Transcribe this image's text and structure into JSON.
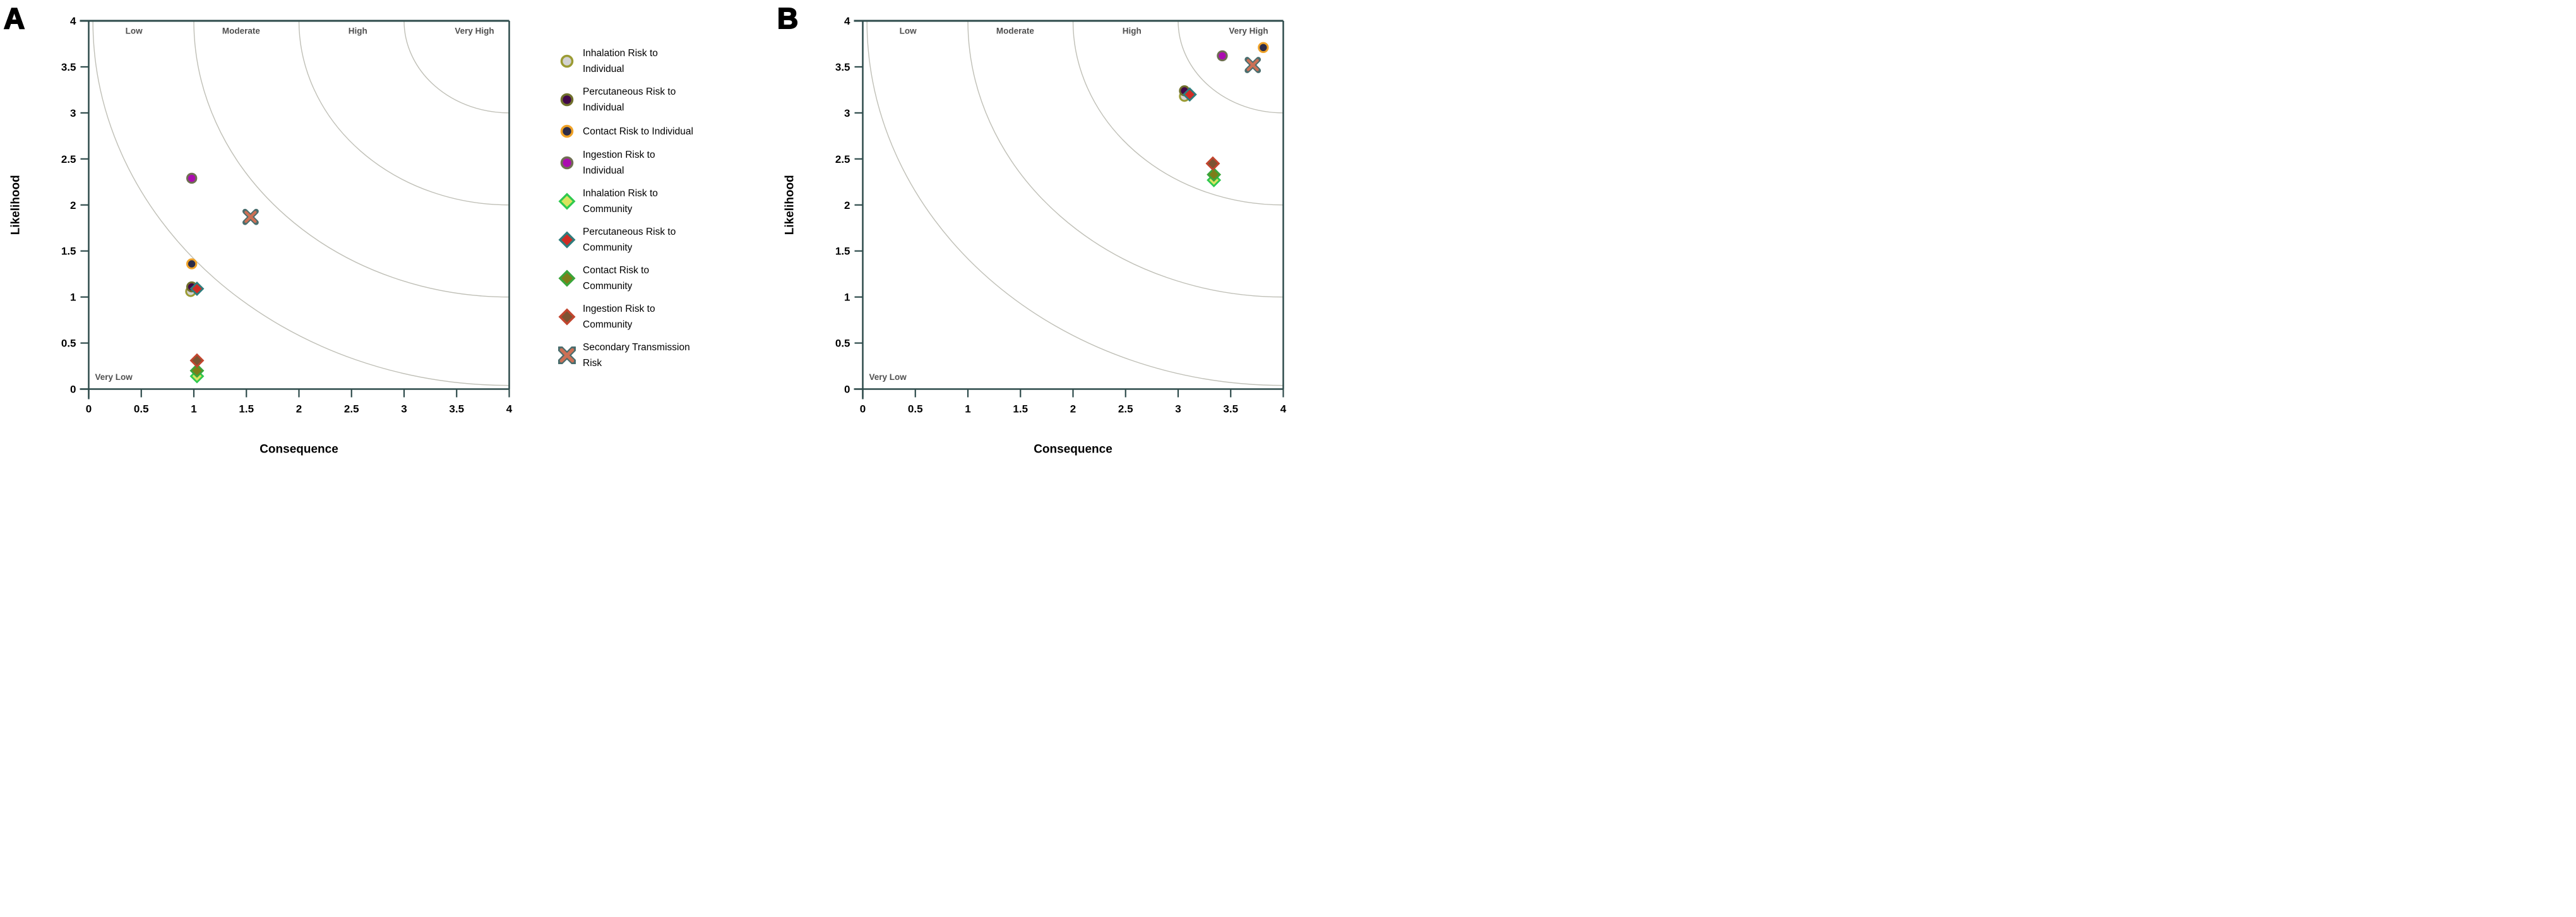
{
  "figure": {
    "panel_labels": [
      "A",
      "B"
    ],
    "background": "#ffffff",
    "axis_color": "#2e4b4b",
    "contour_color": "#bfbfb6",
    "zone_text_color": "#4f4f4f"
  },
  "legend": {
    "items": [
      {
        "label": "Inhalation Risk to\nIndividual",
        "marker": "circle",
        "fill": "#d2d2d2",
        "stroke": "#9b9b33"
      },
      {
        "label": "Percutaneous Risk to\nIndividual",
        "marker": "circle",
        "fill": "#410849",
        "stroke": "#70702c"
      },
      {
        "label": "Contact Risk to Individual",
        "marker": "circle",
        "fill": "#2c2c49",
        "stroke": "#efa228"
      },
      {
        "label": "Ingestion Risk to\nIndividual",
        "marker": "circle",
        "fill": "#ab0cb0",
        "stroke": "#6f6f52"
      },
      {
        "label": "Inhalation Risk to\nCommunity",
        "marker": "diamond",
        "fill": "#d9e45f",
        "stroke": "#2fc94f"
      },
      {
        "label": "Percutaneous Risk to\nCommunity",
        "marker": "diamond",
        "fill": "#d02c24",
        "stroke": "#2e7d7d"
      },
      {
        "label": "Contact Risk to\nCommunity",
        "marker": "diamond",
        "fill": "#7d7d19",
        "stroke": "#3aa53a"
      },
      {
        "label": "Ingestion Risk to\nCommunity",
        "marker": "diamond",
        "fill": "#7d5433",
        "stroke": "#c2452e"
      },
      {
        "label": "Secondary Transmission\nRisk",
        "marker": "x",
        "fill": "#cc7055",
        "stroke": "#4a6d6d"
      }
    ]
  },
  "chart_data": [
    {
      "panel": "A",
      "type": "scatter",
      "xlabel": "Consequence",
      "ylabel": "Likelihood",
      "xlim": [
        0,
        4
      ],
      "ylim": [
        0,
        4
      ],
      "xticks": [
        "0",
        "0.5",
        "1",
        "1.5",
        "2",
        "2.5",
        "3",
        "3.5",
        "4"
      ],
      "yticks": [
        "0",
        "0.5",
        "1",
        "1.5",
        "2",
        "2.5",
        "3",
        "3.5",
        "4"
      ],
      "grid": false,
      "contours": {
        "center": [
          4,
          4
        ],
        "radii": [
          1.0,
          2.0,
          3.0,
          3.96
        ]
      },
      "zones": [
        {
          "label": "Low",
          "x": 0.43,
          "y": 3.86,
          "align": "middle"
        },
        {
          "label": "Moderate",
          "x": 1.45,
          "y": 3.86,
          "align": "middle"
        },
        {
          "label": "High",
          "x": 2.56,
          "y": 3.86,
          "align": "middle"
        },
        {
          "label": "Very High",
          "x": 3.67,
          "y": 3.86,
          "align": "middle"
        },
        {
          "label": "Very Low",
          "x": 0.06,
          "y": 0.1,
          "align": "start"
        }
      ],
      "series": [
        {
          "name": "Inhalation Risk to Individual",
          "x": 0.97,
          "y": 1.06
        },
        {
          "name": "Percutaneous Risk to Individual",
          "x": 0.98,
          "y": 1.11
        },
        {
          "name": "Contact Risk to Individual",
          "x": 0.98,
          "y": 1.36
        },
        {
          "name": "Ingestion Risk to Individual",
          "x": 0.98,
          "y": 2.29
        },
        {
          "name": "Inhalation Risk to Community",
          "x": 1.03,
          "y": 0.14
        },
        {
          "name": "Percutaneous Risk to Community",
          "x": 1.03,
          "y": 1.09
        },
        {
          "name": "Contact Risk to Community",
          "x": 1.03,
          "y": 0.2
        },
        {
          "name": "Ingestion Risk to Community",
          "x": 1.03,
          "y": 0.31
        },
        {
          "name": "Secondary Transmission Risk",
          "x": 1.54,
          "y": 1.87
        }
      ]
    },
    {
      "panel": "B",
      "type": "scatter",
      "xlabel": "Consequence",
      "ylabel": "Likelihood",
      "xlim": [
        0,
        4
      ],
      "ylim": [
        0,
        4
      ],
      "xticks": [
        "0",
        "0.5",
        "1",
        "1.5",
        "2",
        "2.5",
        "3",
        "3.5",
        "4"
      ],
      "yticks": [
        "0",
        "0.5",
        "1",
        "1.5",
        "2",
        "2.5",
        "3",
        "3.5",
        "4"
      ],
      "grid": false,
      "contours": {
        "center": [
          4,
          4
        ],
        "radii": [
          1.0,
          2.0,
          3.0,
          3.96
        ]
      },
      "zones": [
        {
          "label": "Low",
          "x": 0.43,
          "y": 3.86,
          "align": "middle"
        },
        {
          "label": "Moderate",
          "x": 1.45,
          "y": 3.86,
          "align": "middle"
        },
        {
          "label": "High",
          "x": 2.56,
          "y": 3.86,
          "align": "middle"
        },
        {
          "label": "Very High",
          "x": 3.67,
          "y": 3.86,
          "align": "middle"
        },
        {
          "label": "Very Low",
          "x": 0.06,
          "y": 0.1,
          "align": "start"
        }
      ],
      "series": [
        {
          "name": "Inhalation Risk to Individual",
          "x": 3.06,
          "y": 3.18
        },
        {
          "name": "Percutaneous Risk to Individual",
          "x": 3.06,
          "y": 3.24
        },
        {
          "name": "Contact Risk to Individual",
          "x": 3.81,
          "y": 3.71
        },
        {
          "name": "Ingestion Risk to Individual",
          "x": 3.42,
          "y": 3.62
        },
        {
          "name": "Inhalation Risk to Community",
          "x": 3.34,
          "y": 2.27
        },
        {
          "name": "Percutaneous Risk to Community",
          "x": 3.11,
          "y": 3.2
        },
        {
          "name": "Contact Risk to Community",
          "x": 3.34,
          "y": 2.33
        },
        {
          "name": "Ingestion Risk to Community",
          "x": 3.33,
          "y": 2.45
        },
        {
          "name": "Secondary Transmission Risk",
          "x": 3.71,
          "y": 3.52
        }
      ]
    }
  ]
}
